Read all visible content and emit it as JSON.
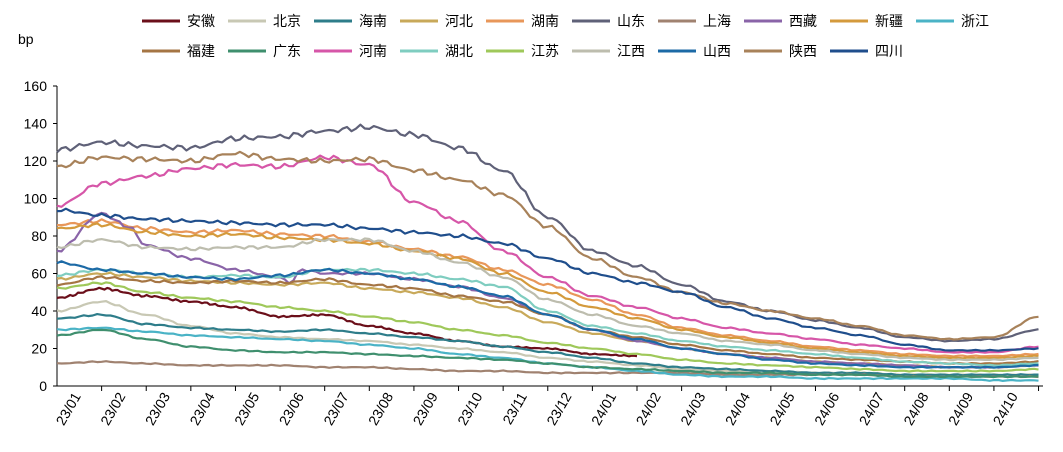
{
  "chart_data": {
    "type": "line",
    "title": "",
    "ylabel": "bp",
    "xlabel": "",
    "ylim": [
      0,
      160
    ],
    "yticks": [
      0,
      20,
      40,
      60,
      80,
      100,
      120,
      140,
      160
    ],
    "x_tick_labels": [
      "23/01",
      "23/02",
      "23/03",
      "23/04",
      "23/05",
      "23/06",
      "23/07",
      "23/08",
      "23/09",
      "23/10",
      "23/11",
      "23/12",
      "24/01",
      "24/02",
      "24/03",
      "24/04",
      "24/05",
      "24/06",
      "24/07",
      "24/08",
      "24/09",
      "24/10"
    ],
    "x_range_months": [
      0,
      22.1
    ],
    "grid": false,
    "legend_position": "top",
    "series": [
      {
        "name": "安徽",
        "color": "#6b0f1a",
        "x": [
          0,
          1,
          2,
          3,
          4,
          5,
          6,
          7,
          8,
          9,
          10,
          11,
          12,
          13
        ],
        "values": [
          47,
          52,
          48,
          45,
          42,
          37,
          38,
          32,
          28,
          24,
          21,
          20,
          17,
          16
        ]
      },
      {
        "name": "北京",
        "color": "#c8c8b4",
        "x": [
          0,
          1,
          2,
          3,
          4,
          5,
          6,
          7,
          8,
          9,
          10,
          11,
          12,
          13,
          14,
          15,
          16,
          17,
          18,
          19,
          20,
          21,
          22
        ],
        "values": [
          40,
          45,
          38,
          32,
          28,
          26,
          25,
          24,
          22,
          20,
          18,
          15,
          13,
          11,
          9,
          8,
          8,
          7,
          7,
          6,
          6,
          6,
          6
        ]
      },
      {
        "name": "海南",
        "color": "#2e7d8a",
        "x": [
          0,
          1,
          2,
          3,
          4,
          5,
          6,
          7,
          8,
          9,
          10,
          11,
          12,
          13,
          14,
          15,
          16,
          17,
          18,
          19,
          20,
          21,
          22
        ],
        "values": [
          36,
          38,
          33,
          31,
          30,
          29,
          30,
          28,
          26,
          24,
          21,
          18,
          15,
          12,
          10,
          9,
          8,
          7,
          7,
          6,
          6,
          6,
          6
        ]
      },
      {
        "name": "河北",
        "color": "#c8a95a",
        "x": [
          0,
          1,
          2,
          3,
          4,
          5,
          6,
          7,
          8,
          9,
          10,
          11,
          12,
          13,
          14,
          15,
          16,
          17,
          18,
          19,
          20,
          21,
          22
        ],
        "values": [
          57,
          60,
          58,
          56,
          55,
          54,
          55,
          52,
          50,
          47,
          42,
          34,
          28,
          24,
          20,
          17,
          15,
          13,
          12,
          11,
          10,
          10,
          11
        ]
      },
      {
        "name": "湖南",
        "color": "#e8975a",
        "x": [
          0,
          1,
          2,
          3,
          4,
          5,
          6,
          7,
          8,
          9,
          10,
          11,
          12,
          13,
          14,
          15,
          16,
          17,
          18,
          19,
          20,
          21,
          22
        ],
        "values": [
          86,
          88,
          84,
          82,
          83,
          81,
          80,
          77,
          73,
          69,
          62,
          54,
          46,
          38,
          31,
          27,
          24,
          21,
          19,
          17,
          16,
          16,
          17
        ]
      },
      {
        "name": "山东",
        "color": "#5f6178",
        "x": [
          0,
          1,
          2,
          3,
          4,
          5,
          6,
          7,
          8,
          9,
          10,
          11,
          12,
          13,
          14,
          15,
          16,
          17,
          18,
          19,
          20,
          21,
          22
        ],
        "values": [
          126,
          130,
          128,
          127,
          132,
          133,
          136,
          138,
          134,
          127,
          115,
          90,
          72,
          64,
          54,
          45,
          40,
          35,
          31,
          26,
          24,
          25,
          30
        ]
      },
      {
        "name": "上海",
        "color": "#a08270",
        "x": [
          0,
          1,
          2,
          3,
          4,
          5,
          6,
          7,
          8,
          9,
          10,
          11,
          12,
          13,
          14,
          15,
          16,
          17,
          18,
          19,
          20,
          21,
          22
        ],
        "values": [
          12,
          13,
          12,
          11,
          11,
          11,
          10,
          10,
          9,
          8,
          8,
          7,
          7,
          7,
          7,
          6,
          6,
          6,
          6,
          5,
          5,
          5,
          5
        ]
      },
      {
        "name": "西藏",
        "color": "#8a64a8",
        "x": [
          0,
          1,
          1.6,
          2,
          3,
          4,
          5,
          5.2,
          5.5,
          6,
          7,
          8,
          9,
          10,
          11,
          12,
          13,
          14,
          15,
          16,
          17,
          18,
          19,
          20,
          21,
          22
        ],
        "values": [
          72,
          92,
          85,
          75,
          68,
          62,
          58,
          55,
          62,
          60,
          60,
          57,
          53,
          47,
          38,
          30,
          24,
          20,
          17,
          15,
          13,
          12,
          11,
          10,
          10,
          11
        ]
      },
      {
        "name": "新疆",
        "color": "#d49a3c",
        "x": [
          0,
          1,
          2,
          3,
          4,
          5,
          6,
          7,
          8,
          9,
          10,
          11,
          12,
          13,
          14,
          15,
          16,
          17,
          18,
          19,
          20,
          21,
          22
        ],
        "values": [
          84,
          86,
          82,
          80,
          81,
          79,
          78,
          76,
          72,
          68,
          60,
          50,
          42,
          36,
          30,
          26,
          23,
          20,
          18,
          16,
          15,
          15,
          16
        ]
      },
      {
        "name": "浙江",
        "color": "#4ab3c6",
        "x": [
          0,
          1,
          2,
          3,
          4,
          5,
          6,
          7,
          8,
          9,
          10,
          11,
          12,
          13,
          14,
          15,
          16,
          17,
          18,
          19,
          20,
          21,
          22
        ],
        "values": [
          30,
          31,
          29,
          27,
          26,
          25,
          24,
          22,
          20,
          17,
          15,
          12,
          10,
          8,
          6,
          5,
          5,
          4,
          4,
          4,
          4,
          3,
          3
        ]
      },
      {
        "name": "福建",
        "color": "#a57544",
        "x": [
          0,
          1,
          2,
          3,
          4,
          5,
          6,
          7,
          8,
          9,
          10,
          11,
          12,
          13,
          14,
          15,
          16,
          17,
          18,
          19,
          20,
          21,
          22
        ],
        "values": [
          54,
          58,
          56,
          55,
          56,
          55,
          57,
          54,
          52,
          48,
          45,
          38,
          30,
          26,
          22,
          19,
          17,
          15,
          14,
          13,
          12,
          12,
          13
        ]
      },
      {
        "name": "广东",
        "color": "#3f8f6e",
        "x": [
          0,
          1,
          2,
          3,
          4,
          5,
          6,
          7,
          8,
          9,
          10,
          11,
          12,
          13,
          14,
          15,
          16,
          17,
          18,
          19,
          20,
          21,
          22
        ],
        "values": [
          27,
          30,
          25,
          21,
          19,
          18,
          18,
          17,
          16,
          15,
          14,
          12,
          10,
          9,
          8,
          7,
          7,
          6,
          6,
          5,
          5,
          5,
          5
        ]
      },
      {
        "name": "河南",
        "color": "#d656a8",
        "x": [
          0,
          1,
          2,
          3,
          4,
          5,
          6,
          7,
          8,
          9,
          10,
          11,
          12,
          13,
          14,
          15,
          16,
          17,
          18,
          19,
          20,
          21,
          22
        ],
        "values": [
          96,
          108,
          112,
          116,
          118,
          117,
          122,
          118,
          98,
          88,
          72,
          58,
          48,
          42,
          36,
          31,
          28,
          25,
          22,
          20,
          18,
          18,
          21
        ]
      },
      {
        "name": "湖北",
        "color": "#7fcdc0",
        "x": [
          0,
          1,
          2,
          3,
          4,
          5,
          6,
          7,
          8,
          9,
          10,
          11,
          12,
          13,
          14,
          15,
          16,
          17,
          18,
          19,
          20,
          21,
          22
        ],
        "values": [
          59,
          62,
          60,
          58,
          59,
          58,
          62,
          62,
          60,
          57,
          53,
          40,
          32,
          28,
          24,
          21,
          19,
          17,
          15,
          13,
          12,
          11,
          12
        ]
      },
      {
        "name": "江苏",
        "color": "#9fc85a",
        "x": [
          0,
          1,
          2,
          3,
          4,
          5,
          6,
          7,
          8,
          9,
          10,
          11,
          12,
          13,
          14,
          15,
          16,
          17,
          18,
          19,
          20,
          21,
          22
        ],
        "values": [
          52,
          55,
          50,
          47,
          45,
          42,
          40,
          37,
          34,
          30,
          27,
          23,
          20,
          17,
          14,
          12,
          11,
          10,
          9,
          8,
          8,
          8,
          9
        ]
      },
      {
        "name": "江西",
        "color": "#bdbdae",
        "x": [
          0,
          1,
          2,
          3,
          4,
          5,
          6,
          7,
          8,
          9,
          10,
          11,
          12,
          13,
          14,
          15,
          16,
          17,
          18,
          19,
          20,
          21,
          22
        ],
        "values": [
          74,
          78,
          74,
          73,
          74,
          74,
          78,
          78,
          72,
          66,
          58,
          46,
          38,
          32,
          28,
          24,
          22,
          19,
          17,
          15,
          14,
          14,
          15
        ]
      },
      {
        "name": "山西",
        "color": "#1c6aa6",
        "x": [
          0,
          1,
          2,
          3,
          4,
          5,
          6,
          7,
          8,
          9,
          10,
          11,
          12,
          13,
          14,
          15,
          16,
          17,
          18,
          19,
          20,
          21,
          22
        ],
        "values": [
          66,
          62,
          60,
          58,
          57,
          59,
          62,
          60,
          57,
          53,
          48,
          38,
          30,
          25,
          20,
          17,
          14,
          12,
          11,
          10,
          10,
          10,
          11
        ]
      },
      {
        "name": "陕西",
        "color": "#a8825a",
        "x": [
          0,
          1,
          2,
          3,
          4,
          5,
          6,
          7,
          8,
          9,
          10,
          11,
          12,
          13,
          14,
          15,
          16,
          17,
          18,
          19,
          20,
          21,
          22
        ],
        "values": [
          117,
          122,
          121,
          120,
          124,
          121,
          120,
          121,
          115,
          110,
          102,
          85,
          68,
          58,
          50,
          44,
          40,
          36,
          32,
          27,
          25,
          26,
          37
        ]
      },
      {
        "name": "四川",
        "color": "#1f4e8c",
        "x": [
          0,
          1,
          2,
          3,
          4,
          5,
          6,
          7,
          8,
          9,
          10,
          11,
          12,
          13,
          14,
          15,
          16,
          17,
          18,
          19,
          20,
          21,
          22
        ],
        "values": [
          94,
          91,
          89,
          88,
          87,
          86,
          86,
          84,
          82,
          80,
          76,
          68,
          60,
          55,
          50,
          42,
          36,
          31,
          27,
          22,
          19,
          19,
          20
        ]
      }
    ]
  }
}
